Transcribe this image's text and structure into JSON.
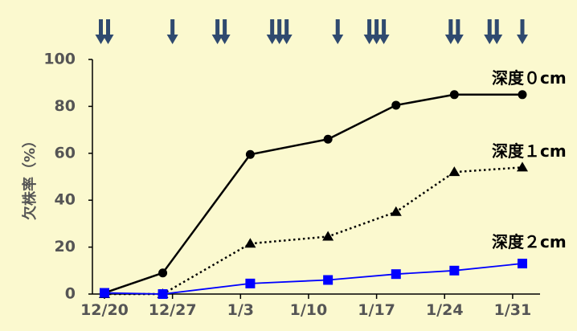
{
  "chart_data": {
    "type": "line",
    "ylabel": "欠株率（%）",
    "ylim": [
      0,
      100
    ],
    "yticks": [
      "0",
      "20",
      "40",
      "60",
      "80",
      "100"
    ],
    "xlim": [
      "12/20",
      "2/1"
    ],
    "xticks": [
      "12/20",
      "12/27",
      "1/3",
      "1/10",
      "1/17",
      "1/24",
      "1/31"
    ],
    "grid": false,
    "series": [
      {
        "name": "深度０cm",
        "color": "#000000",
        "line_style": "solid",
        "marker": "circle",
        "x": [
          "12/20",
          "12/26",
          "1/4",
          "1/12",
          "1/19",
          "1/25",
          "2/1"
        ],
        "values": [
          0.5,
          9,
          59.5,
          66,
          80.5,
          85,
          85
        ]
      },
      {
        "name": "深度１cm",
        "color": "#000000",
        "line_style": "dotted",
        "marker": "triangle",
        "x": [
          "12/20",
          "12/26",
          "1/4",
          "1/12",
          "1/19",
          "1/25",
          "2/1"
        ],
        "values": [
          0,
          0,
          21.5,
          24.5,
          35,
          52,
          54
        ]
      },
      {
        "name": "深度２cm",
        "color": "#0000ff",
        "line_style": "solid",
        "marker": "square",
        "x": [
          "12/20",
          "12/26",
          "1/4",
          "1/12",
          "1/19",
          "1/25",
          "2/1"
        ],
        "values": [
          0.5,
          0,
          4.5,
          6,
          8.5,
          10,
          13
        ]
      }
    ],
    "event_markers": {
      "color": "#2f4a6f",
      "icon": "down-arrow",
      "counts": [
        2,
        1,
        2,
        3,
        1,
        3,
        2,
        2,
        1
      ],
      "dates": [
        "12/20",
        "12/27",
        "1/1",
        "1/7",
        "1/13",
        "1/17",
        "1/25",
        "1/29",
        "2/1"
      ]
    }
  }
}
